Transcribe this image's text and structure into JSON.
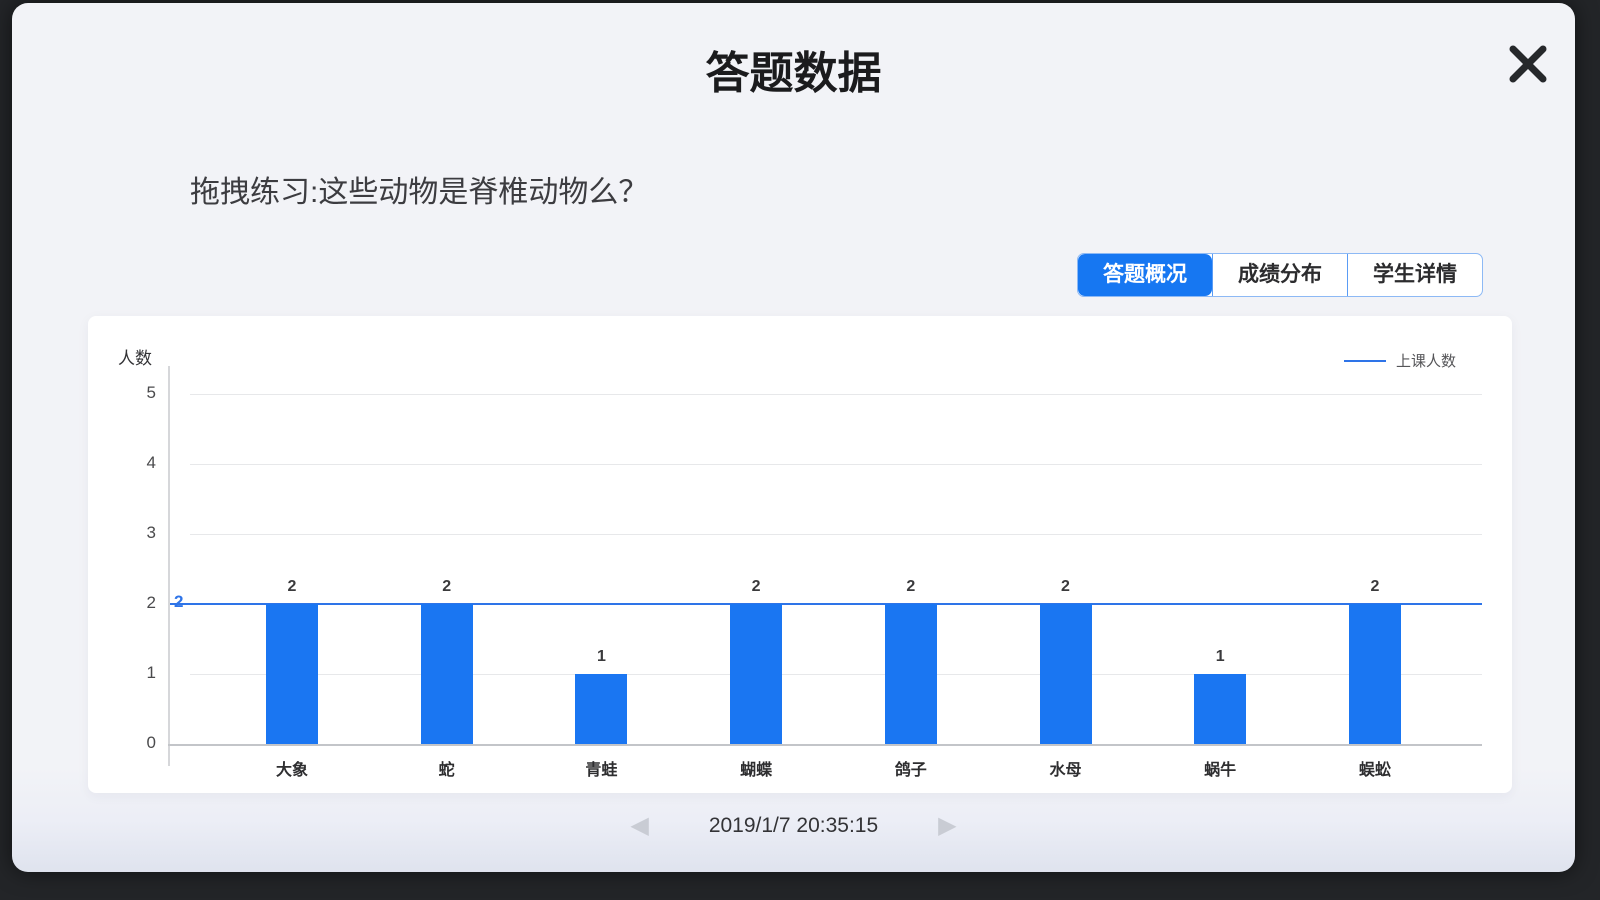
{
  "modal": {
    "title": "答题数据"
  },
  "question": {
    "text": "拖拽练习:这些动物是脊椎动物么？"
  },
  "tabs": [
    {
      "label": "答题概况",
      "active": true
    },
    {
      "label": "成绩分布",
      "active": false
    },
    {
      "label": "学生详情",
      "active": false
    }
  ],
  "chart_data": {
    "type": "bar",
    "title": "",
    "xlabel": "",
    "ylabel": "人数",
    "categories": [
      "大象",
      "蛇",
      "青蛙",
      "蝴蝶",
      "鸽子",
      "水母",
      "蜗牛",
      "蜈蚣"
    ],
    "values": [
      2,
      2,
      1,
      2,
      2,
      2,
      1,
      2
    ],
    "ylim": [
      0,
      5
    ],
    "yticks": [
      0,
      1,
      2,
      3,
      4,
      5
    ],
    "grid": true,
    "bar_color": "#1a76f2",
    "legend": [
      {
        "name": "上课人数",
        "type": "line",
        "color": "#2e74e8",
        "position": "top-right"
      }
    ],
    "reference_line": {
      "value": 2,
      "label": "2",
      "color": "#2e74e8",
      "series": "上课人数"
    }
  },
  "pagination": {
    "prev_icon": "◀",
    "next_icon": "▶",
    "timestamp": "2019/1/7 20:35:15"
  },
  "icons": {
    "close": "close-icon"
  },
  "colors": {
    "accent": "#1677f2",
    "bar": "#1a76f2",
    "reference_line": "#2e74e8",
    "tab_border": "#8db9f5",
    "tab_separator": "#5a9cf5",
    "background": "#f2f3f7",
    "frame": "#232528"
  }
}
